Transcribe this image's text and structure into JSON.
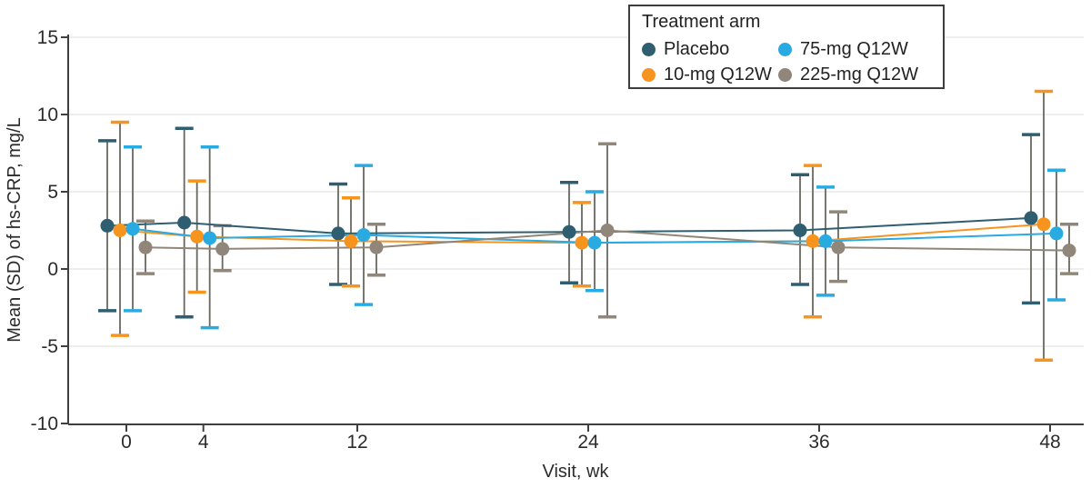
{
  "chart_data": {
    "type": "line",
    "subtype": "mean-with-error-bars",
    "error_bars": "SD",
    "xlabel": "Visit, wk",
    "ylabel": "Mean (SD) of hs-CRP, mg/L",
    "x": [
      0,
      4,
      12,
      24,
      36,
      48
    ],
    "x_tick_labels": [
      "0",
      "4",
      "12",
      "24",
      "36",
      "48"
    ],
    "y_ticks": [
      -10,
      -5,
      0,
      5,
      10,
      15
    ],
    "ylim": [
      -10,
      15
    ],
    "grid": "horizontal",
    "legend": {
      "title": "Treatment arm",
      "position": "top-center",
      "columns": 2
    },
    "style": {
      "background_color": "#ffffff",
      "axis_color": "#3f3f3f",
      "gridline_color": "#e9e9e9",
      "error_stem_color": "#68675f",
      "text_color": "#2b2b2b"
    },
    "series": [
      {
        "name": "Placebo",
        "color": "#2e5e70",
        "mean": [
          2.8,
          3.0,
          2.3,
          2.4,
          2.5,
          3.3
        ],
        "upper": [
          8.3,
          9.1,
          5.5,
          5.6,
          6.1,
          8.7
        ],
        "lower": [
          -2.7,
          -3.1,
          -1.0,
          -0.9,
          -1.0,
          -2.2
        ]
      },
      {
        "name": "10-mg Q12W",
        "color": "#f7941e",
        "mean": [
          2.5,
          2.1,
          1.8,
          1.7,
          1.8,
          2.9
        ],
        "upper": [
          9.5,
          5.7,
          4.6,
          4.3,
          6.7,
          11.5
        ],
        "lower": [
          -4.3,
          -1.5,
          -1.1,
          -1.1,
          -3.1,
          -5.9
        ]
      },
      {
        "name": "75-mg Q12W",
        "color": "#29abe2",
        "mean": [
          2.6,
          2.0,
          2.2,
          1.7,
          1.8,
          2.3
        ],
        "upper": [
          7.9,
          7.9,
          6.7,
          5.0,
          5.3,
          6.4
        ],
        "lower": [
          -2.7,
          -3.8,
          -2.3,
          -1.4,
          -1.7,
          -2.0
        ]
      },
      {
        "name": "225-mg Q12W",
        "color": "#908679",
        "mean": [
          1.4,
          1.3,
          1.4,
          2.5,
          1.4,
          1.2
        ],
        "upper": [
          3.1,
          2.8,
          2.9,
          8.1,
          3.7,
          2.9
        ],
        "lower": [
          -0.3,
          -0.1,
          -0.4,
          -3.1,
          -0.8,
          -0.3
        ]
      }
    ]
  }
}
